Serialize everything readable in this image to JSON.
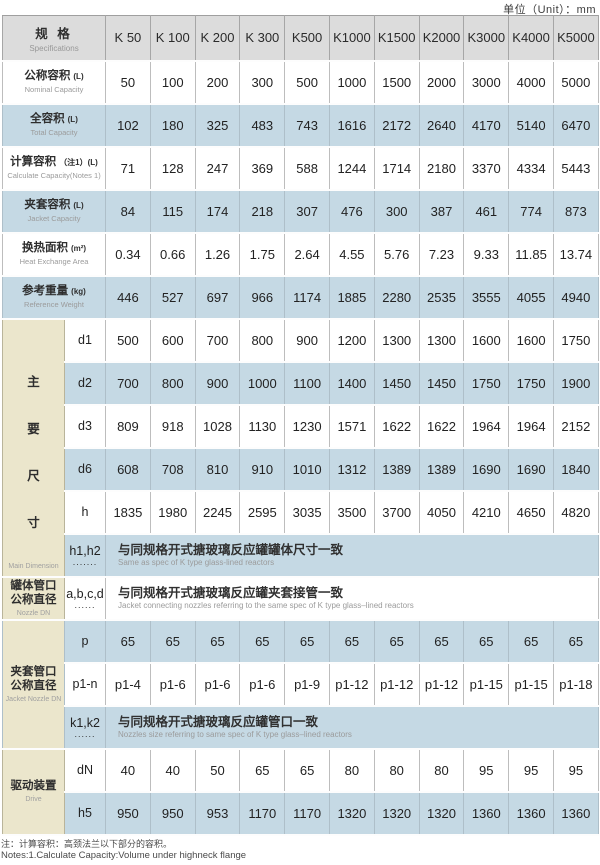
{
  "unit_label": "单位（Unit）：mm",
  "header": {
    "spec_zh": "规 格",
    "spec_en": "Specifications",
    "models": [
      "K 50",
      "K 100",
      "K 200",
      "K 300",
      "K500",
      "K1000",
      "K1500",
      "K2000",
      "K3000",
      "K4000",
      "K5000"
    ]
  },
  "spec_rows": [
    {
      "zh": "公称容积",
      "unit": "(L)",
      "en": "Nominal Capacity",
      "values": [
        "50",
        "100",
        "200",
        "300",
        "500",
        "1000",
        "1500",
        "2000",
        "3000",
        "4000",
        "5000"
      ]
    },
    {
      "zh": "全容积",
      "unit": "(L)",
      "en": "Total Capacity",
      "values": [
        "102",
        "180",
        "325",
        "483",
        "743",
        "1616",
        "2172",
        "2640",
        "4170",
        "5140",
        "6470"
      ]
    },
    {
      "zh": "计算容积",
      "unit": "（注1）(L)",
      "en": "Calculate Capacity(Notes 1)",
      "values": [
        "71",
        "128",
        "247",
        "369",
        "588",
        "1244",
        "1714",
        "2180",
        "3370",
        "4334",
        "5443"
      ]
    },
    {
      "zh": "夹套容积",
      "unit": "(L)",
      "en": "Jacket Capacity",
      "values": [
        "84",
        "115",
        "174",
        "218",
        "307",
        "476",
        "300",
        "387",
        "461",
        "774",
        "873"
      ]
    },
    {
      "zh": "换热面积",
      "unit": "(m²)",
      "en": "Heat Exchange Area",
      "values": [
        "0.34",
        "0.66",
        "1.26",
        "1.75",
        "2.64",
        "4.55",
        "5.76",
        "7.23",
        "9.33",
        "11.85",
        "13.74"
      ]
    },
    {
      "zh": "参考重量",
      "unit": "(kg)",
      "en": "Reference Weight",
      "values": [
        "446",
        "527",
        "697",
        "966",
        "1174",
        "1885",
        "2280",
        "2535",
        "3555",
        "4055",
        "4940"
      ]
    }
  ],
  "dims": {
    "group_zh": "主要尺寸",
    "group_en": "Main Dimension",
    "rows": [
      {
        "label": "d1",
        "values": [
          "500",
          "600",
          "700",
          "800",
          "900",
          "1200",
          "1300",
          "1300",
          "1600",
          "1600",
          "1750"
        ]
      },
      {
        "label": "d2",
        "values": [
          "700",
          "800",
          "900",
          "1000",
          "1100",
          "1400",
          "1450",
          "1450",
          "1750",
          "1750",
          "1900"
        ]
      },
      {
        "label": "d3",
        "values": [
          "809",
          "918",
          "1028",
          "1130",
          "1230",
          "1571",
          "1622",
          "1622",
          "1964",
          "1964",
          "2152"
        ]
      },
      {
        "label": "d6",
        "values": [
          "608",
          "708",
          "810",
          "910",
          "1010",
          "1312",
          "1389",
          "1389",
          "1690",
          "1690",
          "1840"
        ]
      },
      {
        "label": "h",
        "values": [
          "1835",
          "1980",
          "2245",
          "2595",
          "3035",
          "3500",
          "3700",
          "4050",
          "4210",
          "4650",
          "4820"
        ]
      }
    ],
    "h1h2_label": "h1,h2",
    "h1h2_dots": ".......",
    "h1h2_zh": "与同规格开式搪玻璃反应罐罐体尺寸一致",
    "h1h2_en": "Same as spec of  K type glass-lined reactors"
  },
  "nozzle": {
    "group_zh": "罐体管口\n公称直径",
    "group_en": "Nozzle DN",
    "label": "a,b,c,d",
    "dots": "......",
    "zh": "与同规格开式搪玻璃反应罐夹套接管一致",
    "en": "Jacket connecting nozzles referring to the same spec of  K type glass–lined reactors"
  },
  "jacket_nozzle": {
    "group_zh": "夹套管口\n公称直径",
    "group_en": "Jacket Nozzle DN",
    "p_label": "p",
    "p_values": [
      "65",
      "65",
      "65",
      "65",
      "65",
      "65",
      "65",
      "65",
      "65",
      "65",
      "65"
    ],
    "p1n_label": "p1-n",
    "p1n_values": [
      "p1-4",
      "p1-6",
      "p1-6",
      "p1-6",
      "p1-9",
      "p1-12",
      "p1-12",
      "p1-12",
      "p1-15",
      "p1-15",
      "p1-18"
    ],
    "k_label": "k1,k2",
    "k_dots": "......",
    "k_zh": "与同规格开式搪玻璃反应罐管口一致",
    "k_en": "Nozzles size referring to same  spec of  K type glass–lined reactors"
  },
  "drive": {
    "group_zh": "驱动装置",
    "group_en": "Drive",
    "dn_label": "dN",
    "dn_values": [
      "40",
      "40",
      "50",
      "65",
      "65",
      "80",
      "80",
      "80",
      "95",
      "95",
      "95"
    ],
    "h5_label": "h5",
    "h5_values": [
      "950",
      "950",
      "953",
      "1170",
      "1170",
      "1320",
      "1320",
      "1320",
      "1360",
      "1360",
      "1360"
    ]
  },
  "notes": {
    "zh": "注：计算容积：高颈法兰以下部分的容积。",
    "en": "Notes:1.Calculate Capacity:Volume under highneck flange"
  }
}
